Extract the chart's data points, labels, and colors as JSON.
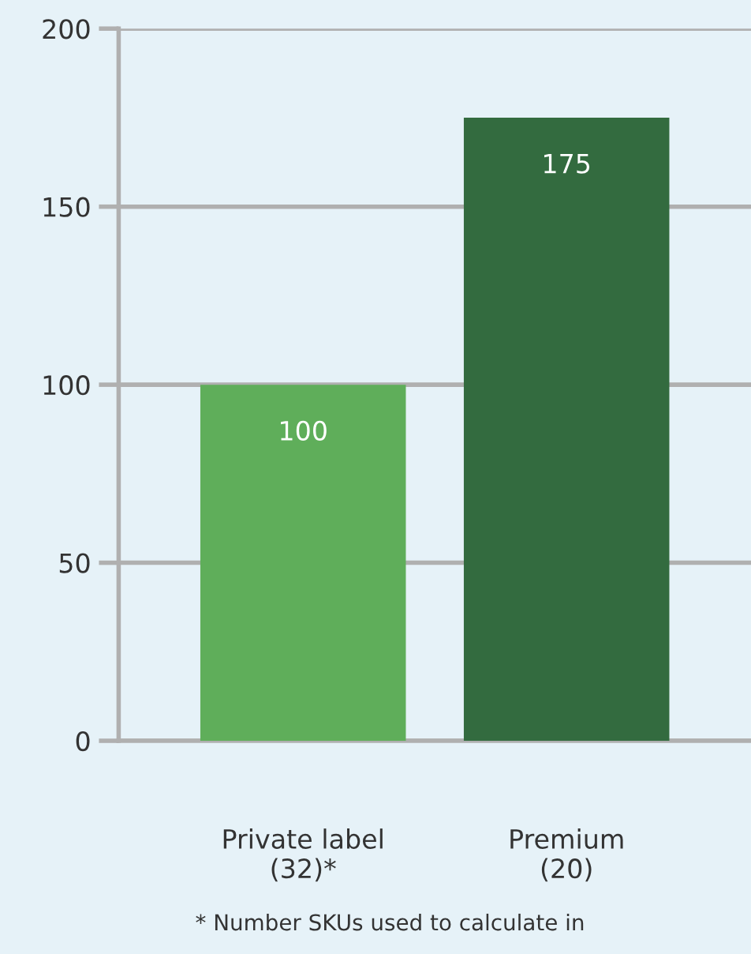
{
  "chart_data": {
    "type": "bar",
    "categories": [
      "Private label\n(32)*",
      "Premium\n(20)"
    ],
    "values": [
      100,
      175
    ],
    "colors": [
      "#5fae5a",
      "#336b3f"
    ],
    "ylim": [
      0,
      200
    ],
    "yticks": [
      0,
      50,
      100,
      150,
      200
    ],
    "grid": "y",
    "data_labels": true,
    "annotations": [
      "* Number SKUs used to calculate in"
    ]
  }
}
